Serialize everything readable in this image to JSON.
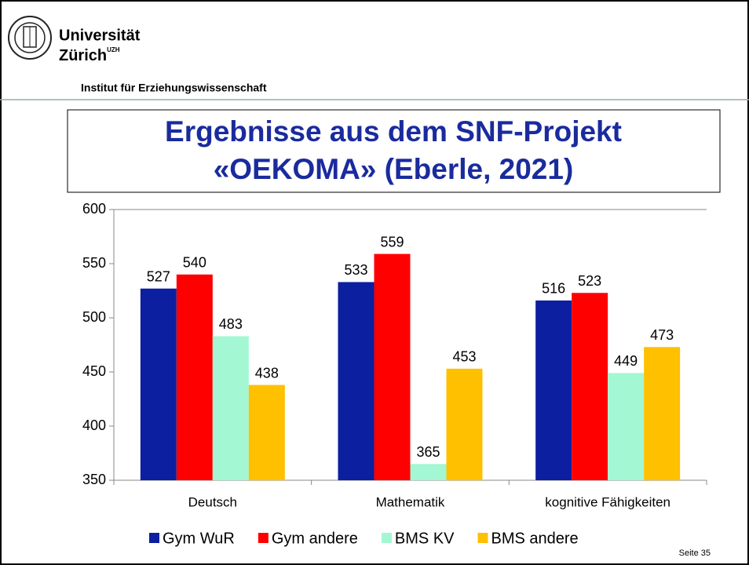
{
  "header": {
    "university_line1": "Universität",
    "university_line2": "Zürich",
    "university_mark": "UZH",
    "institute": "Institut für Erziehungswissenschaft"
  },
  "chart_data": {
    "type": "bar",
    "title": [
      "Ergebnisse aus dem SNF-Projekt",
      "«OEKOMA» (Eberle, 2021)"
    ],
    "categories": [
      "Deutsch",
      "Mathematik",
      "kognitive Fähigkeiten"
    ],
    "series": [
      {
        "name": "Gym WuR",
        "color": "#0b1fa0",
        "values": [
          527,
          533,
          516
        ]
      },
      {
        "name": "Gym andere",
        "color": "#ff0000",
        "values": [
          540,
          559,
          523
        ]
      },
      {
        "name": "BMS KV",
        "color": "#a3f7d2",
        "values": [
          483,
          365,
          449
        ]
      },
      {
        "name": "BMS andere",
        "color": "#ffc000",
        "values": [
          438,
          453,
          473
        ]
      }
    ],
    "ylim": [
      350,
      600
    ],
    "yticks": [
      350,
      400,
      450,
      500,
      550,
      600
    ]
  },
  "footer": {
    "page": "Seite 35"
  }
}
